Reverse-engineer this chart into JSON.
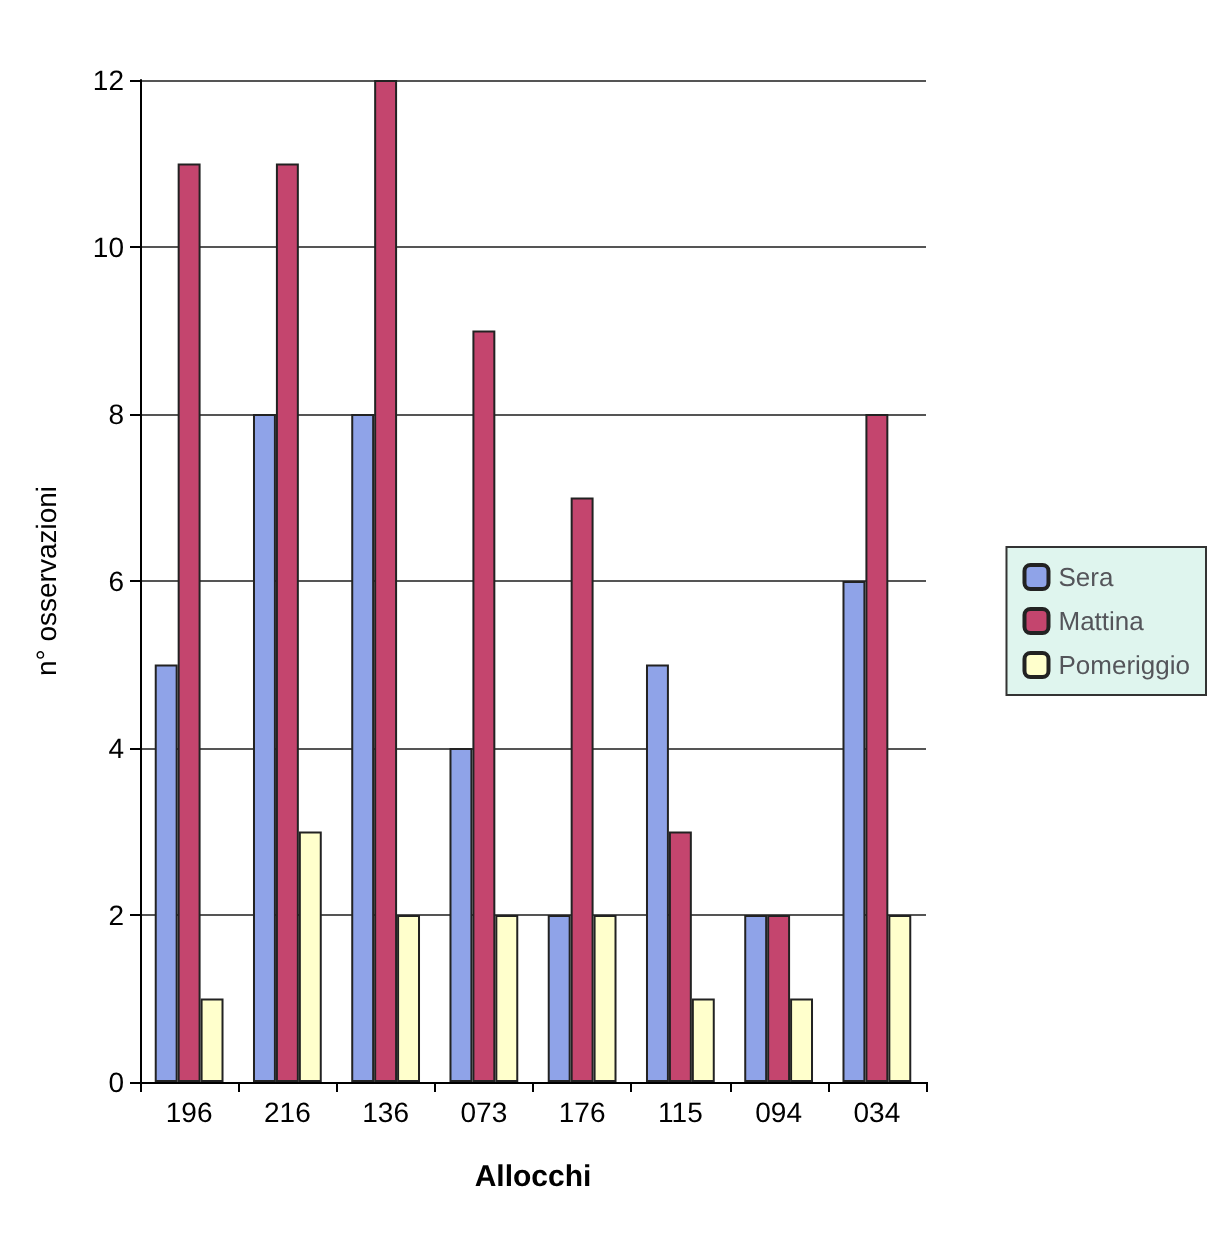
{
  "chart_data": {
    "type": "bar",
    "xlabel": "Allocchi",
    "ylabel": "n° osservazioni",
    "categories": [
      "196",
      "216",
      "136",
      "073",
      "176",
      "115",
      "094",
      "034"
    ],
    "series": [
      {
        "name": "Sera",
        "color": "#8fa3e8",
        "values": [
          5,
          8,
          8,
          4,
          2,
          5,
          2,
          6
        ]
      },
      {
        "name": "Mattina",
        "color": "#c4456e",
        "values": [
          11,
          11,
          12,
          9,
          7,
          3,
          2,
          8
        ]
      },
      {
        "name": "Pomeriggio",
        "color": "#ffffcc",
        "values": [
          1,
          3,
          2,
          2,
          2,
          1,
          1,
          2
        ]
      }
    ],
    "ylim": [
      0,
      12
    ],
    "yticks": [
      0,
      2,
      4,
      6,
      8,
      10,
      12
    ],
    "grid": "y",
    "legend": "right"
  }
}
